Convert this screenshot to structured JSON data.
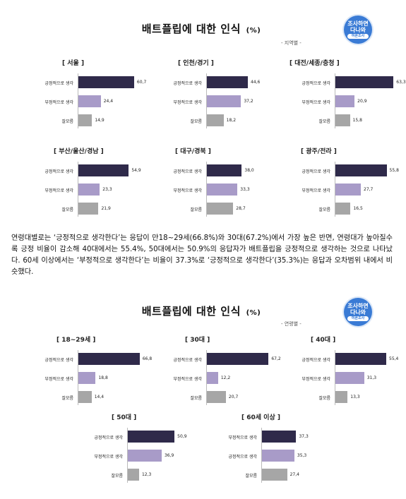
{
  "colors": {
    "positive": "#2f2a4a",
    "negative": "#a89bc8",
    "unknown": "#a6a6a6",
    "badge": "#3a7bd5"
  },
  "badge": {
    "line1": "조사하면",
    "line2": "다나와",
    "line3": "여론조사"
  },
  "sections": [
    {
      "id": "region",
      "title": "배트플립에 대한 인식",
      "unit": "(%)",
      "subtitle": "- 지역별 -",
      "panels": [
        {
          "label": "[ 서울 ]",
          "rows": [
            {
              "label": "긍정적으로 생각",
              "value": 60.7,
              "display": "60,7",
              "color": "positive"
            },
            {
              "label": "부정적으로 생각",
              "value": 24.4,
              "display": "24,4",
              "color": "negative"
            },
            {
              "label": "잘모름",
              "value": 14.9,
              "display": "14,9",
              "color": "unknown"
            }
          ]
        },
        {
          "label": "[ 인천/경기 ]",
          "rows": [
            {
              "label": "긍정적으로 생각",
              "value": 44.6,
              "display": "44,6",
              "color": "positive"
            },
            {
              "label": "부정적으로 생각",
              "value": 37.2,
              "display": "37,2",
              "color": "negative"
            },
            {
              "label": "잘모름",
              "value": 18.2,
              "display": "18,2",
              "color": "unknown"
            }
          ]
        },
        {
          "label": "[ 대전/세종/충청 ]",
          "rows": [
            {
              "label": "긍정적으로 생각",
              "value": 63.3,
              "display": "63,3",
              "color": "positive"
            },
            {
              "label": "부정적으로 생각",
              "value": 20.9,
              "display": "20,9",
              "color": "negative"
            },
            {
              "label": "잘모름",
              "value": 15.8,
              "display": "15,8",
              "color": "unknown"
            }
          ]
        },
        {
          "label": "[ 부산/울산/경남 ]",
          "rows": [
            {
              "label": "긍정적으로 생각",
              "value": 54.9,
              "display": "54,9",
              "color": "positive"
            },
            {
              "label": "부정적으로 생각",
              "value": 23.3,
              "display": "23,3",
              "color": "negative"
            },
            {
              "label": "잘모름",
              "value": 21.9,
              "display": "21,9",
              "color": "unknown"
            }
          ]
        },
        {
          "label": "[ 대구/경북 ]",
          "rows": [
            {
              "label": "긍정적으로 생각",
              "value": 38.0,
              "display": "38,0",
              "color": "positive"
            },
            {
              "label": "부정적으로 생각",
              "value": 33.3,
              "display": "33,3",
              "color": "negative"
            },
            {
              "label": "잘모름",
              "value": 28.7,
              "display": "28,7",
              "color": "unknown"
            }
          ]
        },
        {
          "label": "[ 광주/전라 ]",
          "rows": [
            {
              "label": "긍정적으로 생각",
              "value": 55.8,
              "display": "55,8",
              "color": "positive"
            },
            {
              "label": "부정적으로 생각",
              "value": 27.7,
              "display": "27,7",
              "color": "negative"
            },
            {
              "label": "잘모름",
              "value": 16.5,
              "display": "16,5",
              "color": "unknown"
            }
          ]
        }
      ]
    },
    {
      "id": "age",
      "title": "배트플립에 대한 인식",
      "unit": "(%)",
      "subtitle": "- 연령별 -",
      "panels": [
        {
          "label": "[ 18~29세 ]",
          "rows": [
            {
              "label": "긍정적으로 생각",
              "value": 66.8,
              "display": "66,8",
              "color": "positive"
            },
            {
              "label": "부정적으로 생각",
              "value": 18.8,
              "display": "18,8",
              "color": "negative"
            },
            {
              "label": "잘모름",
              "value": 14.4,
              "display": "14,4",
              "color": "unknown"
            }
          ]
        },
        {
          "label": "[ 30대 ]",
          "rows": [
            {
              "label": "긍정적으로 생각",
              "value": 67.2,
              "display": "67,2",
              "color": "positive"
            },
            {
              "label": "부정적으로 생각",
              "value": 12.2,
              "display": "12,2",
              "color": "negative"
            },
            {
              "label": "잘모름",
              "value": 20.7,
              "display": "20,7",
              "color": "unknown"
            }
          ]
        },
        {
          "label": "[ 40대 ]",
          "rows": [
            {
              "label": "긍정적으로 생각",
              "value": 55.4,
              "display": "55,4",
              "color": "positive"
            },
            {
              "label": "부정적으로 생각",
              "value": 31.3,
              "display": "31,3",
              "color": "negative"
            },
            {
              "label": "잘모름",
              "value": 13.3,
              "display": "13,3",
              "color": "unknown"
            }
          ]
        },
        {
          "label": "[ 50대 ]",
          "rows": [
            {
              "label": "긍정적으로 생각",
              "value": 50.9,
              "display": "50,9",
              "color": "positive"
            },
            {
              "label": "부정적으로 생각",
              "value": 36.9,
              "display": "36,9",
              "color": "negative"
            },
            {
              "label": "잘모름",
              "value": 12.3,
              "display": "12,3",
              "color": "unknown"
            }
          ]
        },
        {
          "label": "[ 60세 이상 ]",
          "rows": [
            {
              "label": "부정적으로 생각",
              "value": 37.3,
              "display": "37,3",
              "color": "positive"
            },
            {
              "label": "긍정적으로 생각",
              "value": 35.3,
              "display": "35,3",
              "color": "negative"
            },
            {
              "label": "잘모름",
              "value": 27.4,
              "display": "27,4",
              "color": "unknown"
            }
          ]
        }
      ]
    }
  ],
  "body_text": "연령대별로는 ‘긍정적으로 생각한다’는 응답이 만18~29세(66.8%)와 30대(67.2%)에서 가장 높은 반면, 연령대가 높아질수록 긍정 비율이 감소해 40대에서는 55.4%, 50대에서는 50.9%의 응답자가 배트플립을 긍정적으로 생각하는 것으로 나타났다. 60세 이상에서는 ‘부정적으로 생각한다’는 비율이 37.3%로 ‘긍정적으로 생각한다’(35.3%)는 응답과 오차범위 내에서 비슷했다.",
  "chart_data": [
    {
      "type": "bar",
      "orientation": "horizontal",
      "title": "배트플립에 대한 인식 (%)",
      "subtitle": "- 지역별 -",
      "groups": [
        "서울",
        "인천/경기",
        "대전/세종/충청",
        "부산/울산/경남",
        "대구/경북",
        "광주/전라"
      ],
      "categories": [
        "긍정적으로 생각",
        "부정적으로 생각",
        "잘모름"
      ],
      "values": [
        [
          60.7,
          24.4,
          14.9
        ],
        [
          44.6,
          37.2,
          18.2
        ],
        [
          63.3,
          20.9,
          15.8
        ],
        [
          54.9,
          23.3,
          21.9
        ],
        [
          38.0,
          33.3,
          28.7
        ],
        [
          55.8,
          27.7,
          16.5
        ]
      ],
      "xlim": [
        0,
        70
      ],
      "grid": false
    },
    {
      "type": "bar",
      "orientation": "horizontal",
      "title": "배트플립에 대한 인식 (%)",
      "subtitle": "- 연령별 -",
      "groups": [
        "18~29세",
        "30대",
        "40대",
        "50대",
        "60세 이상"
      ],
      "categories_per_group": [
        [
          "긍정적으로 생각",
          "부정적으로 생각",
          "잘모름"
        ],
        [
          "긍정적으로 생각",
          "부정적으로 생각",
          "잘모름"
        ],
        [
          "긍정적으로 생각",
          "부정적으로 생각",
          "잘모름"
        ],
        [
          "긍정적으로 생각",
          "부정적으로 생각",
          "잘모름"
        ],
        [
          "부정적으로 생각",
          "긍정적으로 생각",
          "잘모름"
        ]
      ],
      "values": [
        [
          66.8,
          18.8,
          14.4
        ],
        [
          67.2,
          12.2,
          20.7
        ],
        [
          55.4,
          31.3,
          13.3
        ],
        [
          50.9,
          36.9,
          12.3
        ],
        [
          37.3,
          35.3,
          27.4
        ]
      ],
      "xlim": [
        0,
        70
      ],
      "grid": false
    }
  ]
}
